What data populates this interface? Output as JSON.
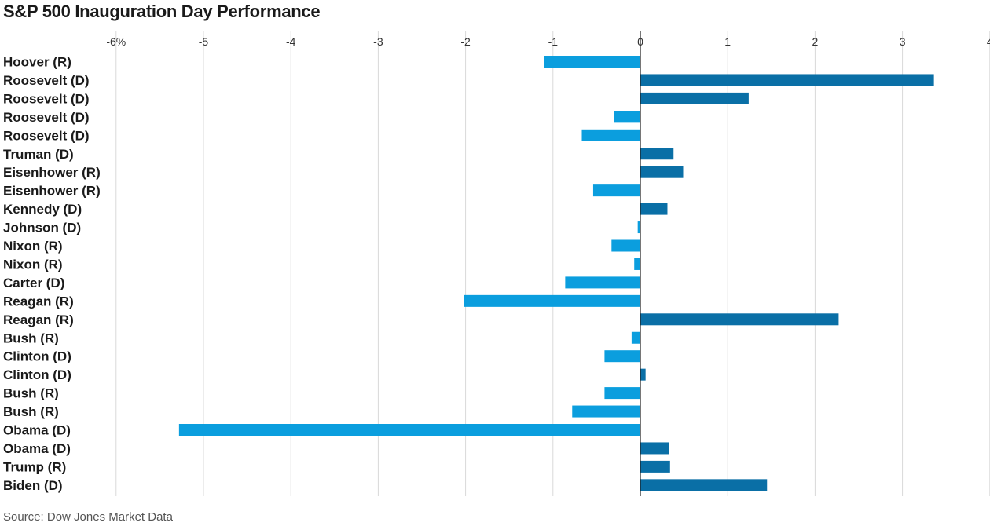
{
  "title": "S&P 500 Inauguration Day Performance",
  "source": "Source: Dow Jones Market Data",
  "colors": {
    "negative": "#0b9ede",
    "positive": "#0a6fa6",
    "grid": "#d9d9d9",
    "zero_line": "#1a1a1a"
  },
  "chart_data": {
    "type": "bar",
    "orientation": "horizontal",
    "title": "S&P 500 Inauguration Day Performance",
    "xlabel": "",
    "ylabel": "",
    "xlim": [
      -6,
      4
    ],
    "x_ticks": [
      -6,
      -5,
      -4,
      -3,
      -2,
      -1,
      0,
      1,
      2,
      3,
      4
    ],
    "x_tick_labels": [
      "-6%",
      "-5",
      "-4",
      "-3",
      "-2",
      "-1",
      "0",
      "1",
      "2",
      "3",
      "4"
    ],
    "grid": true,
    "categories": [
      "Hoover (R)",
      "Roosevelt (D)",
      "Roosevelt (D)",
      "Roosevelt (D)",
      "Roosevelt (D)",
      "Truman (D)",
      "Eisenhower (R)",
      "Eisenhower (R)",
      "Kennedy (D)",
      "Johnson (D)",
      "Nixon (R)",
      "Nixon (R)",
      "Carter (D)",
      "Reagan (R)",
      "Reagan (R)",
      "Bush (R)",
      "Clinton (D)",
      "Clinton (D)",
      "Bush (R)",
      "Bush (R)",
      "Obama (D)",
      "Obama (D)",
      "Trump (R)",
      "Biden (D)"
    ],
    "values": [
      -1.1,
      3.36,
      1.24,
      -0.3,
      -0.67,
      0.38,
      0.49,
      -0.54,
      0.31,
      -0.03,
      -0.33,
      -0.07,
      -0.86,
      -2.02,
      2.27,
      -0.1,
      -0.41,
      0.06,
      -0.41,
      -0.78,
      -5.28,
      0.33,
      0.34,
      1.45
    ],
    "source": "Source: Dow Jones Market Data"
  }
}
